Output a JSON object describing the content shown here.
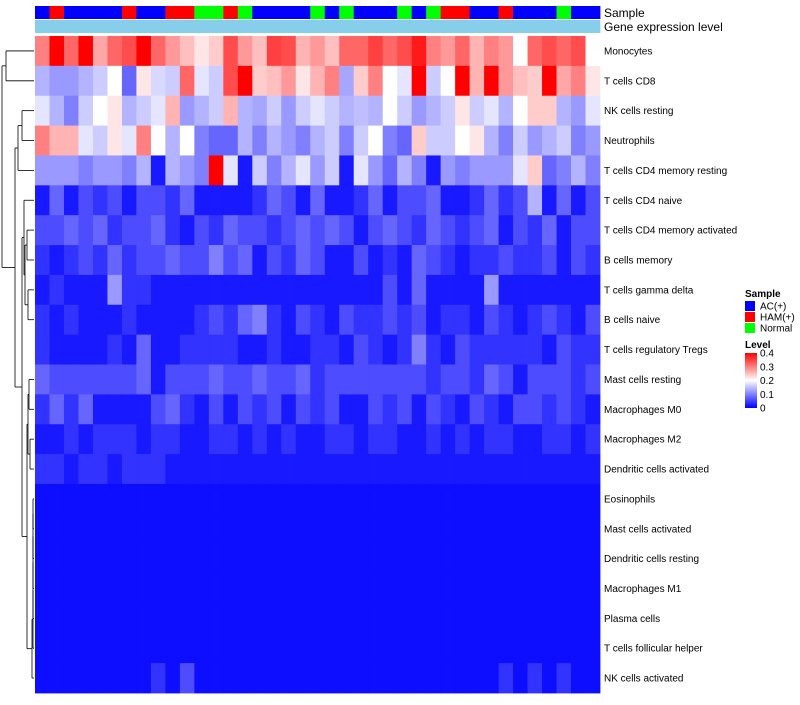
{
  "chart_data": {
    "type": "heatmap",
    "title": "",
    "n_samples": 39,
    "annotations": [
      {
        "label": "Sample"
      },
      {
        "label": "Gene expression level"
      }
    ],
    "sample_groups": [
      "AC",
      "HAM",
      "AC",
      "AC",
      "AC",
      "AC",
      "HAM",
      "AC",
      "AC",
      "HAM",
      "HAM",
      "N",
      "N",
      "HAM",
      "N",
      "AC",
      "AC",
      "AC",
      "AC",
      "N",
      "AC",
      "N",
      "AC",
      "AC",
      "AC",
      "N",
      "AC",
      "N",
      "HAM",
      "HAM",
      "AC",
      "AC",
      "HAM",
      "AC",
      "AC",
      "AC",
      "N",
      "AC",
      "AC"
    ],
    "expression_level": [
      0.08,
      0.08,
      0.08,
      0.08,
      0.08,
      0.08,
      0.08,
      0.08,
      0.08,
      0.08,
      0.08,
      0.08,
      0.08,
      0.08,
      0.08,
      0.08,
      0.08,
      0.08,
      0.08,
      0.08,
      0.08,
      0.08,
      0.08,
      0.08,
      0.08,
      0.08,
      0.08,
      0.08,
      0.08,
      0.08,
      0.08,
      0.08,
      0.08,
      0.08,
      0.08,
      0.08,
      0.08,
      0.08,
      0.08
    ],
    "rows": [
      {
        "label": "Monocytes",
        "values": [
          0.3,
          0.4,
          0.32,
          0.4,
          0.27,
          0.32,
          0.34,
          0.4,
          0.32,
          0.28,
          0.25,
          0.22,
          0.24,
          0.34,
          0.28,
          0.25,
          0.35,
          0.34,
          0.26,
          0.28,
          0.25,
          0.32,
          0.32,
          0.35,
          0.32,
          0.34,
          0.38,
          0.3,
          0.28,
          0.32,
          0.26,
          0.3,
          0.28,
          0.2,
          0.32,
          0.34,
          0.32,
          0.34,
          0.2
        ]
      },
      {
        "label": "T cells CD8",
        "values": [
          0.14,
          0.12,
          0.12,
          0.14,
          0.16,
          0.2,
          0.08,
          0.22,
          0.17,
          0.16,
          0.32,
          0.18,
          0.16,
          0.34,
          0.4,
          0.24,
          0.25,
          0.28,
          0.22,
          0.26,
          0.3,
          0.13,
          0.24,
          0.3,
          0.2,
          0.18,
          0.4,
          0.16,
          0.2,
          0.4,
          0.26,
          0.4,
          0.28,
          0.25,
          0.24,
          0.4,
          0.27,
          0.3,
          0.22
        ]
      },
      {
        "label": "NK cells resting",
        "values": [
          0.18,
          0.14,
          0.1,
          0.16,
          0.2,
          0.22,
          0.14,
          0.16,
          0.18,
          0.26,
          0.12,
          0.14,
          0.16,
          0.26,
          0.14,
          0.13,
          0.16,
          0.12,
          0.16,
          0.18,
          0.16,
          0.14,
          0.15,
          0.14,
          0.2,
          0.16,
          0.12,
          0.14,
          0.16,
          0.22,
          0.16,
          0.18,
          0.14,
          0.2,
          0.24,
          0.24,
          0.14,
          0.12,
          0.18
        ]
      },
      {
        "label": "Neutrophils",
        "values": [
          0.3,
          0.26,
          0.26,
          0.18,
          0.16,
          0.22,
          0.18,
          0.3,
          0.2,
          0.14,
          0.2,
          0.1,
          0.08,
          0.08,
          0.14,
          0.1,
          0.14,
          0.12,
          0.1,
          0.14,
          0.16,
          0.1,
          0.16,
          0.2,
          0.1,
          0.08,
          0.24,
          0.16,
          0.16,
          0.2,
          0.22,
          0.14,
          0.1,
          0.16,
          0.12,
          0.14,
          0.16,
          0.1,
          0.12
        ]
      },
      {
        "label": "T cells CD4 memory resting",
        "values": [
          0.12,
          0.12,
          0.12,
          0.1,
          0.12,
          0.12,
          0.1,
          0.14,
          0.02,
          0.14,
          0.12,
          0.1,
          0.4,
          0.18,
          0.02,
          0.16,
          0.1,
          0.14,
          0.18,
          0.12,
          0.16,
          0.02,
          0.18,
          0.12,
          0.08,
          0.14,
          0.1,
          0.02,
          0.12,
          0.1,
          0.12,
          0.12,
          0.12,
          0.18,
          0.24,
          0.08,
          0.1,
          0.14,
          0.1
        ]
      },
      {
        "label": "T cells CD4 naive",
        "values": [
          0.02,
          0.08,
          0.02,
          0.06,
          0.04,
          0.06,
          0.02,
          0.06,
          0.06,
          0.04,
          0.08,
          0.02,
          0.02,
          0.02,
          0.02,
          0.04,
          0.08,
          0.06,
          0.02,
          0.08,
          0.02,
          0.02,
          0.04,
          0.08,
          0.02,
          0.06,
          0.06,
          0.08,
          0.02,
          0.02,
          0.04,
          0.08,
          0.04,
          0.06,
          0.14,
          0.02,
          0.08,
          0.02,
          0.06
        ]
      },
      {
        "label": "T cells CD4 memory activated",
        "values": [
          0.06,
          0.06,
          0.08,
          0.06,
          0.08,
          0.04,
          0.06,
          0.06,
          0.08,
          0.04,
          0.02,
          0.06,
          0.04,
          0.08,
          0.06,
          0.06,
          0.04,
          0.06,
          0.08,
          0.06,
          0.08,
          0.06,
          0.02,
          0.06,
          0.08,
          0.06,
          0.04,
          0.08,
          0.06,
          0.04,
          0.06,
          0.08,
          0.02,
          0.06,
          0.04,
          0.08,
          0.02,
          0.06,
          0.06
        ]
      },
      {
        "label": "B cells memory",
        "values": [
          0.04,
          0.02,
          0.04,
          0.06,
          0.04,
          0.08,
          0.04,
          0.06,
          0.06,
          0.08,
          0.06,
          0.06,
          0.1,
          0.06,
          0.08,
          0.02,
          0.06,
          0.04,
          0.08,
          0.06,
          0.02,
          0.02,
          0.06,
          0.02,
          0.04,
          0.02,
          0.08,
          0.06,
          0.04,
          0.02,
          0.04,
          0.04,
          0.06,
          0.04,
          0.04,
          0.06,
          0.02,
          0.06,
          0.04
        ]
      },
      {
        "label": "T cells gamma delta",
        "values": [
          0.02,
          0.04,
          0.02,
          0.02,
          0.02,
          0.12,
          0.04,
          0.04,
          0.02,
          0.02,
          0.02,
          0.02,
          0.02,
          0.02,
          0.02,
          0.02,
          0.02,
          0.02,
          0.02,
          0.02,
          0.02,
          0.02,
          0.02,
          0.02,
          0.06,
          0.02,
          0.08,
          0.02,
          0.02,
          0.02,
          0.02,
          0.12,
          0.02,
          0.02,
          0.02,
          0.02,
          0.02,
          0.02,
          0.02
        ]
      },
      {
        "label": "B cells naive",
        "values": [
          0.04,
          0.02,
          0.04,
          0.02,
          0.02,
          0.02,
          0.04,
          0.02,
          0.02,
          0.02,
          0.02,
          0.04,
          0.06,
          0.04,
          0.08,
          0.1,
          0.04,
          0.02,
          0.06,
          0.04,
          0.02,
          0.06,
          0.04,
          0.04,
          0.06,
          0.04,
          0.06,
          0.02,
          0.04,
          0.04,
          0.02,
          0.06,
          0.04,
          0.02,
          0.04,
          0.06,
          0.04,
          0.02,
          0.06
        ]
      },
      {
        "label": "T cells regulatory  Tregs",
        "values": [
          0.04,
          0.02,
          0.02,
          0.02,
          0.02,
          0.04,
          0.02,
          0.08,
          0.02,
          0.02,
          0.04,
          0.04,
          0.04,
          0.04,
          0.02,
          0.02,
          0.04,
          0.02,
          0.02,
          0.04,
          0.04,
          0.02,
          0.06,
          0.04,
          0.02,
          0.04,
          0.1,
          0.04,
          0.02,
          0.06,
          0.04,
          0.04,
          0.04,
          0.04,
          0.04,
          0.02,
          0.06,
          0.04,
          0.04
        ]
      },
      {
        "label": "Mast cells resting",
        "values": [
          0.08,
          0.06,
          0.06,
          0.06,
          0.06,
          0.06,
          0.06,
          0.08,
          0.02,
          0.06,
          0.06,
          0.06,
          0.08,
          0.06,
          0.06,
          0.08,
          0.06,
          0.06,
          0.08,
          0.04,
          0.06,
          0.06,
          0.06,
          0.06,
          0.06,
          0.06,
          0.06,
          0.04,
          0.06,
          0.06,
          0.04,
          0.08,
          0.06,
          0.02,
          0.06,
          0.06,
          0.06,
          0.04,
          0.06
        ]
      },
      {
        "label": "Macrophages M0",
        "values": [
          0.04,
          0.08,
          0.04,
          0.08,
          0.02,
          0.02,
          0.02,
          0.02,
          0.06,
          0.08,
          0.04,
          0.02,
          0.06,
          0.02,
          0.06,
          0.04,
          0.06,
          0.02,
          0.06,
          0.04,
          0.06,
          0.02,
          0.02,
          0.06,
          0.04,
          0.06,
          0.02,
          0.06,
          0.04,
          0.02,
          0.06,
          0.04,
          0.02,
          0.06,
          0.06,
          0.04,
          0.06,
          0.04,
          0.02
        ]
      },
      {
        "label": "Macrophages M2",
        "values": [
          0.02,
          0.02,
          0.04,
          0.02,
          0.04,
          0.04,
          0.04,
          0.02,
          0.04,
          0.04,
          0.02,
          0.02,
          0.04,
          0.04,
          0.02,
          0.04,
          0.02,
          0.04,
          0.02,
          0.02,
          0.04,
          0.04,
          0.02,
          0.04,
          0.04,
          0.02,
          0.02,
          0.04,
          0.02,
          0.04,
          0.02,
          0.04,
          0.04,
          0.02,
          0.02,
          0.04,
          0.04,
          0.02,
          0.04
        ]
      },
      {
        "label": "Dendritic cells activated",
        "values": [
          0.04,
          0.04,
          0.02,
          0.04,
          0.04,
          0.02,
          0.04,
          0.04,
          0.04,
          0.02,
          0.02,
          0.02,
          0.02,
          0.02,
          0.02,
          0.02,
          0.02,
          0.02,
          0.02,
          0.02,
          0.02,
          0.02,
          0.02,
          0.02,
          0.02,
          0.02,
          0.02,
          0.02,
          0.02,
          0.02,
          0.02,
          0.02,
          0.02,
          0.02,
          0.02,
          0.02,
          0.02,
          0.02,
          0.02
        ]
      },
      {
        "label": "Eosinophils",
        "values": [
          0.01,
          0.01,
          0.01,
          0.01,
          0.01,
          0.01,
          0.01,
          0.01,
          0.01,
          0.01,
          0.01,
          0.01,
          0.01,
          0.01,
          0.01,
          0.01,
          0.01,
          0.01,
          0.01,
          0.01,
          0.01,
          0.01,
          0.01,
          0.01,
          0.01,
          0.01,
          0.01,
          0.01,
          0.01,
          0.01,
          0.01,
          0.01,
          0.01,
          0.01,
          0.01,
          0.01,
          0.01,
          0.01,
          0.01
        ]
      },
      {
        "label": "Mast cells activated",
        "values": [
          0.01,
          0.01,
          0.01,
          0.01,
          0.01,
          0.01,
          0.01,
          0.01,
          0.01,
          0.01,
          0.01,
          0.01,
          0.01,
          0.01,
          0.01,
          0.01,
          0.01,
          0.01,
          0.01,
          0.01,
          0.01,
          0.01,
          0.01,
          0.01,
          0.01,
          0.01,
          0.01,
          0.01,
          0.01,
          0.01,
          0.01,
          0.01,
          0.01,
          0.01,
          0.01,
          0.01,
          0.01,
          0.01,
          0.01
        ]
      },
      {
        "label": "Dendritic cells resting",
        "values": [
          0.01,
          0.01,
          0.01,
          0.01,
          0.01,
          0.01,
          0.01,
          0.01,
          0.01,
          0.01,
          0.01,
          0.01,
          0.01,
          0.01,
          0.01,
          0.01,
          0.01,
          0.01,
          0.01,
          0.01,
          0.01,
          0.01,
          0.01,
          0.01,
          0.01,
          0.01,
          0.01,
          0.01,
          0.01,
          0.01,
          0.01,
          0.01,
          0.01,
          0.01,
          0.01,
          0.01,
          0.01,
          0.01,
          0.01
        ]
      },
      {
        "label": "Macrophages M1",
        "values": [
          0.01,
          0.01,
          0.01,
          0.01,
          0.01,
          0.01,
          0.01,
          0.01,
          0.01,
          0.01,
          0.01,
          0.01,
          0.01,
          0.01,
          0.01,
          0.01,
          0.01,
          0.01,
          0.01,
          0.01,
          0.01,
          0.01,
          0.01,
          0.01,
          0.01,
          0.01,
          0.01,
          0.01,
          0.01,
          0.01,
          0.01,
          0.01,
          0.01,
          0.01,
          0.01,
          0.01,
          0.01,
          0.01,
          0.01
        ]
      },
      {
        "label": "Plasma cells",
        "values": [
          0.01,
          0.01,
          0.01,
          0.01,
          0.01,
          0.01,
          0.01,
          0.01,
          0.01,
          0.01,
          0.01,
          0.01,
          0.01,
          0.01,
          0.01,
          0.01,
          0.01,
          0.01,
          0.01,
          0.01,
          0.01,
          0.01,
          0.01,
          0.01,
          0.01,
          0.01,
          0.01,
          0.01,
          0.01,
          0.01,
          0.01,
          0.01,
          0.01,
          0.01,
          0.01,
          0.01,
          0.01,
          0.01,
          0.01
        ]
      },
      {
        "label": "T cells follicular helper",
        "values": [
          0.01,
          0.01,
          0.01,
          0.01,
          0.01,
          0.01,
          0.01,
          0.01,
          0.01,
          0.01,
          0.01,
          0.01,
          0.01,
          0.01,
          0.01,
          0.01,
          0.01,
          0.01,
          0.01,
          0.01,
          0.01,
          0.01,
          0.01,
          0.01,
          0.01,
          0.01,
          0.01,
          0.01,
          0.01,
          0.01,
          0.01,
          0.01,
          0.01,
          0.01,
          0.01,
          0.01,
          0.01,
          0.01,
          0.01
        ]
      },
      {
        "label": "NK cells activated",
        "values": [
          0.01,
          0.01,
          0.01,
          0.01,
          0.01,
          0.01,
          0.01,
          0.01,
          0.04,
          0.01,
          0.06,
          0.01,
          0.01,
          0.01,
          0.01,
          0.01,
          0.01,
          0.01,
          0.01,
          0.01,
          0.01,
          0.01,
          0.01,
          0.01,
          0.01,
          0.01,
          0.01,
          0.01,
          0.01,
          0.01,
          0.01,
          0.01,
          0.04,
          0.01,
          0.04,
          0.01,
          0.04,
          0.01,
          0.01
        ]
      }
    ],
    "legend": {
      "sample_title": "Sample",
      "sample_entries": [
        {
          "key": "AC",
          "label": "AC(+)",
          "color": "#0000ff"
        },
        {
          "key": "HAM",
          "label": "HAM(+)",
          "color": "#ff0000"
        },
        {
          "key": "N",
          "label": "Normal",
          "color": "#00ff00"
        }
      ],
      "level_title": "Level",
      "level_ticks": [
        {
          "value": 0.4,
          "label": "0.4"
        },
        {
          "value": 0.3,
          "label": "0.3"
        },
        {
          "value": 0.2,
          "label": "0.2"
        },
        {
          "value": 0.1,
          "label": "0.1"
        },
        {
          "value": 0,
          "label": "0"
        }
      ],
      "level_range": [
        0,
        0.4
      ]
    },
    "colors": {
      "low": "#0000ff",
      "mid": "#ffffff",
      "high": "#ff0000",
      "mid_value": 0.2,
      "expression_bar": "#87ceeb",
      "dendrogram": "#000000"
    }
  }
}
